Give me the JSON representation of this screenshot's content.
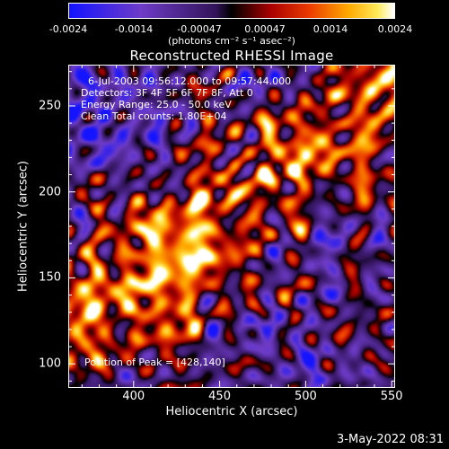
{
  "colorbar": {
    "ticks": [
      "-0.0024",
      "-0.0014",
      "-0.00047",
      "0.00047",
      "0.0014",
      "0.0024"
    ],
    "unit_label": "(photons cm⁻² s⁻¹ asec⁻²)",
    "range": [
      -0.0024,
      0.0024
    ]
  },
  "annotations": {
    "time_range": "6-Jul-2003 09:56:12.000 to 09:57:44.000",
    "detectors": "Detectors: 3F 4F 5F 6F 7F 8F, Att 0",
    "energy": "Energy Range: 25.0 - 50.0 keV",
    "clean": "Clean     Total counts: 1.80E+04",
    "peak": "Position of Peak = [428,140]"
  },
  "footer": {
    "date": "3-May-2022 08:31"
  },
  "chart_data": {
    "type": "heatmap",
    "title": "Reconstructed RHESSI Image",
    "xlabel": "Heliocentric X (arcsec)",
    "ylabel": "Heliocentric Y (arcsec)",
    "xlim": [
      362,
      552
    ],
    "ylim": [
      86,
      274
    ],
    "x_ticks": [
      400,
      450,
      500,
      550
    ],
    "y_ticks": [
      100,
      150,
      200,
      250
    ],
    "x_tick_labels": [
      "400",
      "450",
      "500",
      "550"
    ],
    "y_tick_labels": [
      "100",
      "150",
      "200",
      "250"
    ],
    "peak_position": [
      428,
      140
    ],
    "value_range": [
      -0.0024,
      0.0024
    ],
    "colormap": "red-temperature"
  }
}
